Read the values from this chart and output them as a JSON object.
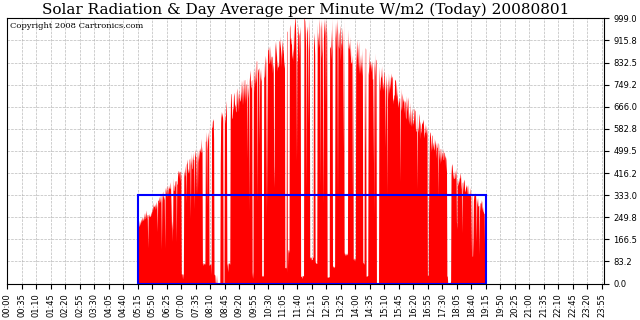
{
  "title": "Solar Radiation & Day Average per Minute W/m2 (Today) 20080801",
  "copyright": "Copyright 2008 Cartronics.com",
  "ylim": [
    0.0,
    999.0
  ],
  "yticks": [
    0.0,
    83.2,
    166.5,
    249.8,
    333.0,
    416.2,
    499.5,
    582.8,
    666.0,
    749.2,
    832.5,
    915.8,
    999.0
  ],
  "bar_color": "#FF0000",
  "blue_rect_x_start": 315,
  "blue_rect_x_end": 1155,
  "blue_rect_y": 333.0,
  "bg_color": "#FFFFFF",
  "grid_color": "#AAAAAA",
  "title_fontsize": 11,
  "copyright_fontsize": 6,
  "tick_fontsize": 6,
  "num_minutes": 1440,
  "xlim": [
    0,
    1439
  ],
  "tick_step": 35
}
